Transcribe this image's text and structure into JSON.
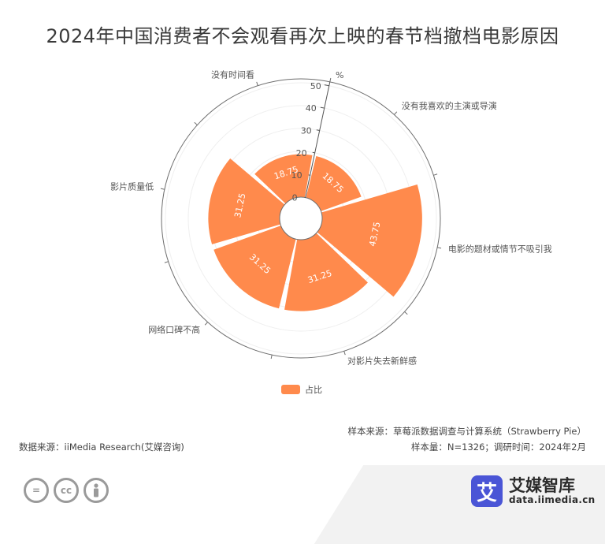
{
  "title": "2024年中国消费者不会观看再次上映的春节档撤档电影原因",
  "chart_data": {
    "type": "bar",
    "subtype": "polar-rose",
    "categories": [
      "没有我喜欢的主演或导演",
      "电影的题材或情节不吸引我",
      "对影片失去新鲜感",
      "网络口碑不高",
      "影片质量低",
      "没有时间看"
    ],
    "series": [
      {
        "name": "占比",
        "values": [
          18.75,
          43.75,
          31.25,
          31.25,
          31.25,
          18.75
        ],
        "color": "#ff8a4c"
      }
    ],
    "radial_axis": {
      "ticks": [
        "0",
        "10",
        "20",
        "30",
        "40",
        "50"
      ],
      "unit": "%",
      "range": [
        0,
        50
      ]
    },
    "legend": {
      "position": "bottom",
      "label": "占比"
    },
    "grid": true
  },
  "footer": {
    "sample_source": "样本来源：草莓派数据调查与计算系统（Strawberry Pie）",
    "sample_size": "样本量：N=1326；调研时间：2024年2月",
    "data_source": "数据来源：iiMedia Research(艾媒咨询)"
  },
  "license_icons": [
    "equals-icon",
    "cc-icon",
    "person-icon"
  ],
  "brand": {
    "logo_char": "艾",
    "name": "艾媒智库",
    "url": "data.iimedia.cn"
  }
}
